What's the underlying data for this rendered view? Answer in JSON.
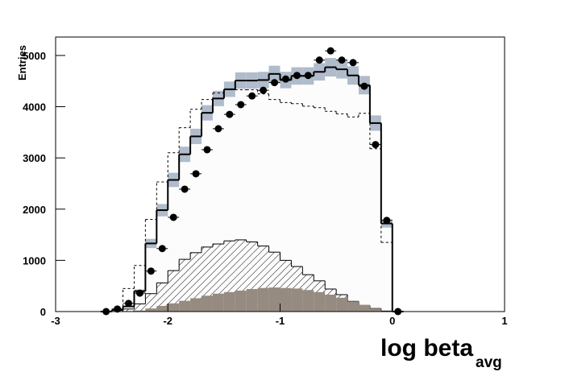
{
  "chart_data": {
    "type": "histogram",
    "y_label": "Entries",
    "x_label": "log beta",
    "x_label_subscript": "avg",
    "bins": [
      -2.6,
      -2.5,
      -2.4,
      -2.3,
      -2.2,
      -2.1,
      -2.0,
      -1.9,
      -1.8,
      -1.7,
      -1.6,
      -1.5,
      -1.4,
      -1.3,
      -1.2,
      -1.1,
      -1.0,
      -0.9,
      -0.8,
      -0.7,
      -0.6,
      -0.5,
      -0.4,
      -0.3,
      -0.2,
      -0.1,
      0.0,
      0.1
    ],
    "xlim": [
      -3,
      1
    ],
    "xticks": [
      -3,
      -2,
      -1,
      0,
      1
    ],
    "ylim": [
      0,
      5360
    ],
    "yticks": [
      0,
      1000,
      2000,
      3000,
      4000,
      5000
    ],
    "band_color": "#b0bccb",
    "series": [
      {
        "style": "solid",
        "color": "#000000",
        "fill": "#fcfcfc",
        "values": [
          0,
          30,
          100,
          400,
          1330,
          1980,
          2570,
          3070,
          3420,
          3880,
          4160,
          4340,
          4510,
          4510,
          4520,
          4640,
          4520,
          4600,
          4600,
          4680,
          4770,
          4730,
          4610,
          4420,
          3680,
          1720,
          0
        ],
        "errors": [
          0,
          5,
          10,
          30,
          90,
          120,
          140,
          150,
          150,
          150,
          150,
          150,
          160,
          160,
          160,
          160,
          160,
          170,
          170,
          170,
          180,
          180,
          180,
          180,
          150,
          80,
          0
        ]
      },
      {
        "style": "dashed",
        "color": "#000000",
        "values": [
          0,
          0,
          450,
          900,
          1800,
          2530,
          3100,
          3590,
          3950,
          4140,
          4270,
          4330,
          4330,
          4330,
          4250,
          4140,
          4080,
          4060,
          4010,
          3980,
          3910,
          3860,
          3800,
          3870,
          3180,
          1350,
          0
        ]
      },
      {
        "style": "hatched",
        "color": "#000000",
        "values": [
          0,
          0,
          50,
          150,
          350,
          560,
          800,
          1020,
          1150,
          1260,
          1320,
          1380,
          1400,
          1360,
          1280,
          1160,
          1000,
          880,
          720,
          600,
          440,
          330,
          200,
          120,
          60,
          10,
          0
        ]
      },
      {
        "style": "filled",
        "color": "#968b80",
        "values": [
          0,
          0,
          0,
          20,
          60,
          110,
          160,
          210,
          260,
          310,
          350,
          380,
          410,
          440,
          460,
          470,
          460,
          450,
          420,
          380,
          330,
          270,
          200,
          130,
          60,
          10,
          0
        ]
      },
      {
        "style": "points",
        "color": "#000000",
        "values": [
          0,
          50,
          160,
          360,
          790,
          1230,
          1840,
          2390,
          2690,
          3160,
          3570,
          3850,
          4040,
          4210,
          4320,
          4470,
          4540,
          4610,
          4610,
          4910,
          5090,
          4910,
          4860,
          4400,
          3260,
          1780,
          0
        ]
      }
    ]
  }
}
